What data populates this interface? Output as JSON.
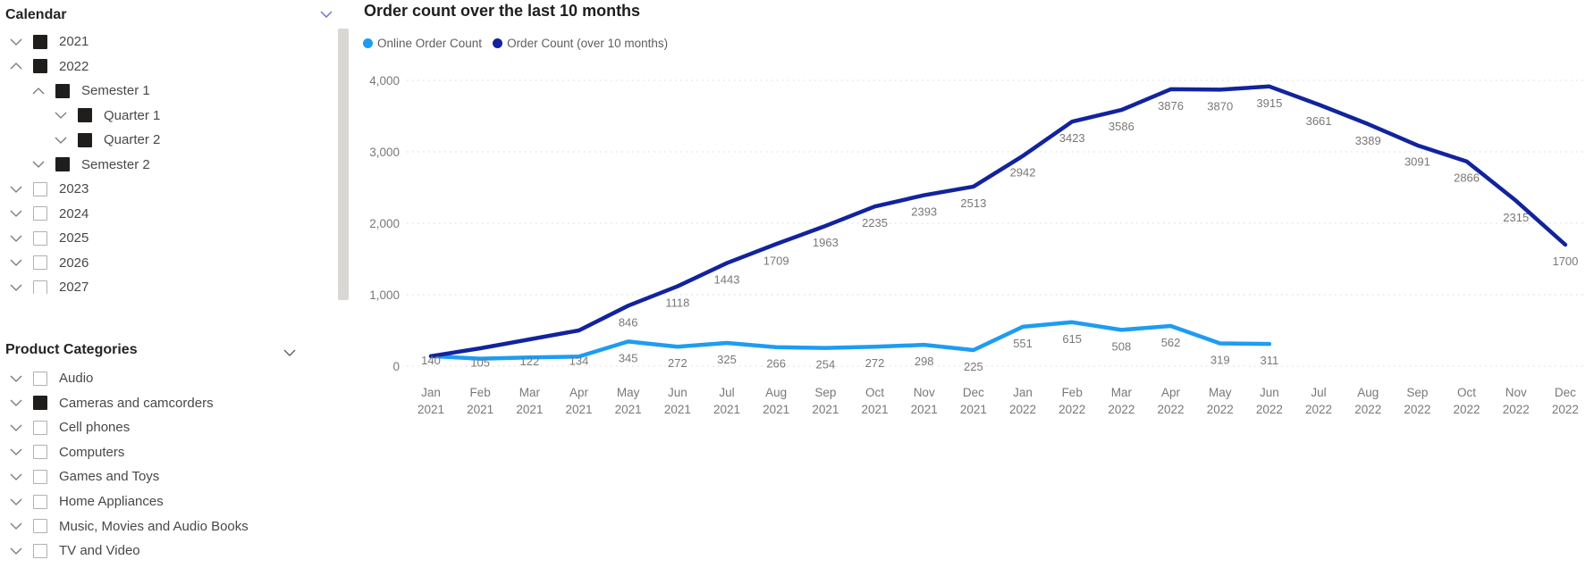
{
  "calendar": {
    "title": "Calendar",
    "items": [
      {
        "label": "2021",
        "level": 0,
        "chevron": "down",
        "checked": true
      },
      {
        "label": "2022",
        "level": 0,
        "chevron": "up",
        "checked": true
      },
      {
        "label": "Semester 1",
        "level": 1,
        "chevron": "up",
        "checked": true
      },
      {
        "label": "Quarter 1",
        "level": 2,
        "chevron": "down",
        "checked": true
      },
      {
        "label": "Quarter 2",
        "level": 2,
        "chevron": "down",
        "checked": true
      },
      {
        "label": "Semester 2",
        "level": 1,
        "chevron": "down",
        "checked": true
      },
      {
        "label": "2023",
        "level": 0,
        "chevron": "down",
        "checked": false
      },
      {
        "label": "2024",
        "level": 0,
        "chevron": "down",
        "checked": false
      },
      {
        "label": "2025",
        "level": 0,
        "chevron": "down",
        "checked": false
      },
      {
        "label": "2026",
        "level": 0,
        "chevron": "down",
        "checked": false
      },
      {
        "label": "2027",
        "level": 0,
        "chevron": "down",
        "checked": false
      }
    ]
  },
  "product_categories": {
    "title": "Product Categories",
    "items": [
      {
        "label": "Audio",
        "checked": false
      },
      {
        "label": "Cameras and camcorders",
        "checked": true
      },
      {
        "label": "Cell phones",
        "checked": false
      },
      {
        "label": "Computers",
        "checked": false
      },
      {
        "label": "Games and Toys",
        "checked": false
      },
      {
        "label": "Home Appliances",
        "checked": false
      },
      {
        "label": "Music, Movies and Audio Books",
        "checked": false
      },
      {
        "label": "TV and Video",
        "checked": false
      }
    ]
  },
  "chart_data": {
    "type": "line",
    "title": "Order count over the last 10 months",
    "xlabel": "",
    "ylabel": "",
    "ylim": [
      0,
      4000
    ],
    "yticks": [
      0,
      1000,
      2000,
      3000,
      4000
    ],
    "ytick_labels": [
      "0",
      "1,000",
      "2,000",
      "3,000",
      "4,000"
    ],
    "grid": "horizontal-dotted",
    "legend_position": "top-left",
    "categories": [
      "Jan 2021",
      "Feb 2021",
      "Mar 2021",
      "Apr 2021",
      "May 2021",
      "Jun 2021",
      "Jul 2021",
      "Aug 2021",
      "Sep 2021",
      "Oct 2021",
      "Nov 2021",
      "Dec 2021",
      "Jan 2022",
      "Feb 2022",
      "Mar 2022",
      "Apr 2022",
      "May 2022",
      "Jun 2022",
      "Jul 2022",
      "Aug 2022",
      "Sep 2022",
      "Oct 2022",
      "Nov 2022",
      "Dec 2022"
    ],
    "series": [
      {
        "name": "Online Order Count",
        "color": "#1e9cf2",
        "values": [
          140,
          105,
          122,
          134,
          345,
          272,
          325,
          266,
          254,
          272,
          298,
          225,
          551,
          615,
          508,
          562,
          319,
          311
        ],
        "data_labels": [
          "140",
          "105",
          "122",
          "134",
          "345",
          "272",
          "325",
          "266",
          "254",
          "272",
          "298",
          "225",
          "551",
          "615",
          "508",
          "562",
          "319",
          "311"
        ]
      },
      {
        "name": "Order Count (over 10 months)",
        "color": "#12239e",
        "values": [
          140,
          250,
          375,
          500,
          846,
          1118,
          1443,
          1709,
          1963,
          2235,
          2393,
          2513,
          2942,
          3423,
          3586,
          3876,
          3870,
          3915,
          3661,
          3389,
          3091,
          2866,
          2315,
          1700
        ],
        "data_labels": [
          null,
          null,
          null,
          null,
          "846",
          "1118",
          "1443",
          "1709",
          "1963",
          "2235",
          "2393",
          "2513",
          "2942",
          "3423",
          "3586",
          "3876",
          "3870",
          "3915",
          "3661",
          "3389",
          "3091",
          "2866",
          "2315",
          "1700"
        ]
      }
    ]
  },
  "icons": {
    "calendar_collapse": "chevron-down",
    "product_collapse": "chevron-down",
    "scrollbar": "vertical-scrollbar"
  }
}
